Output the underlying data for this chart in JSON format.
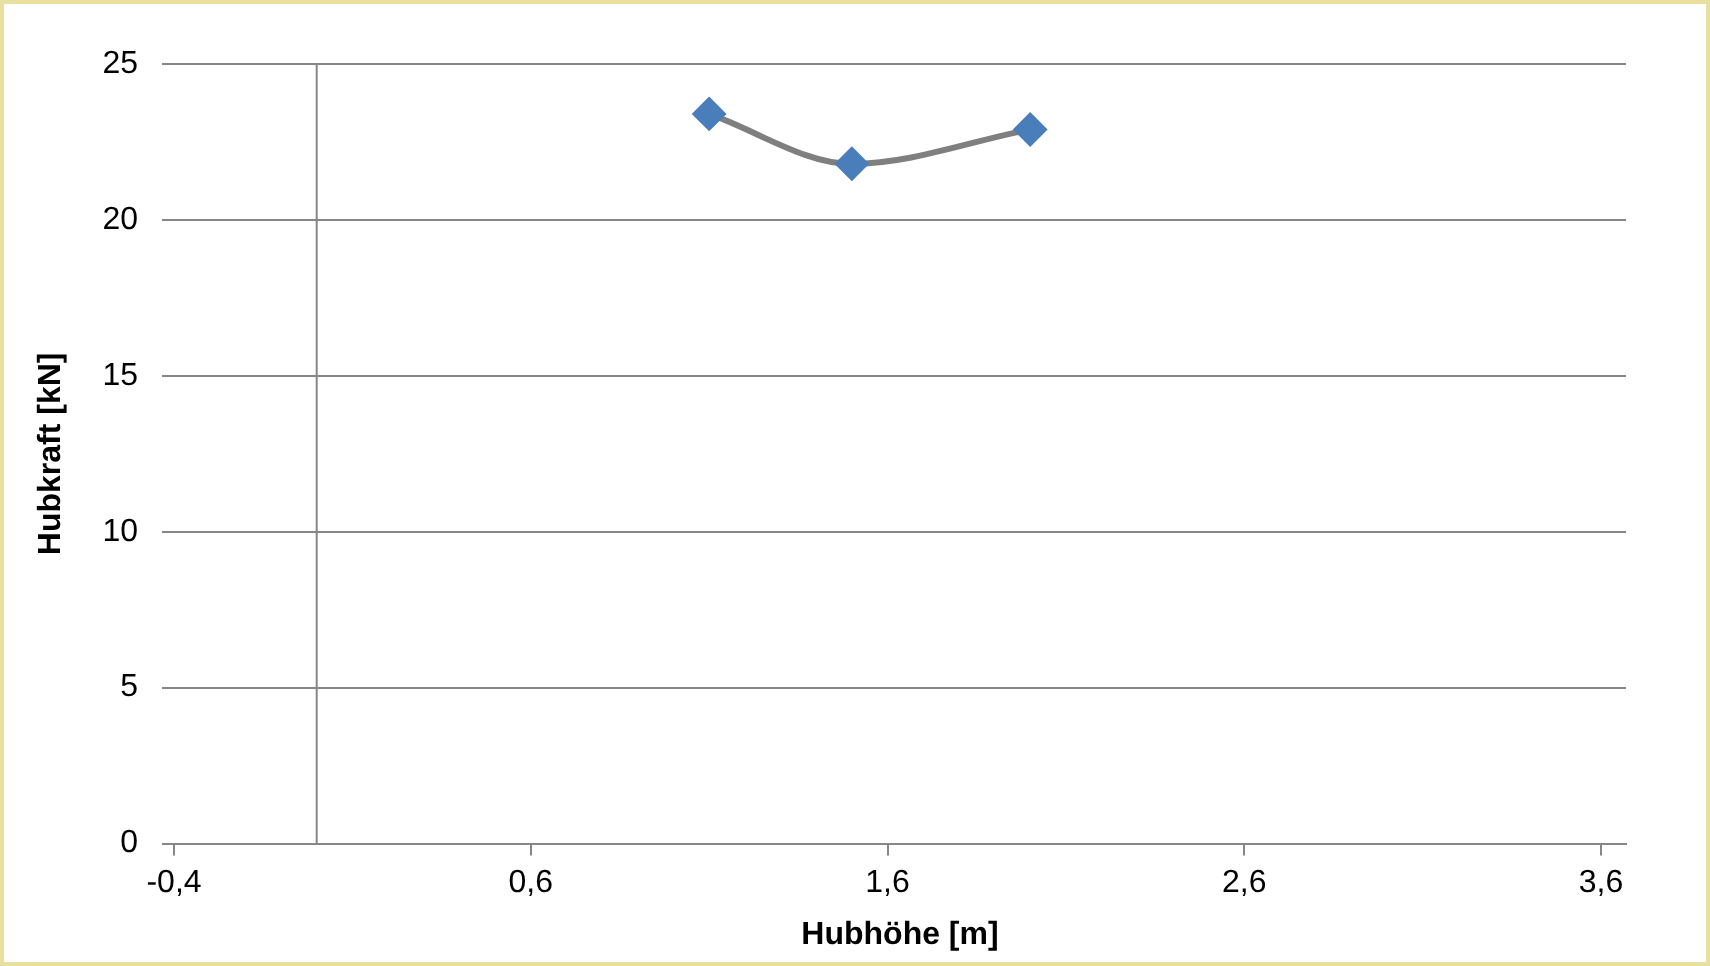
{
  "chart_data": {
    "type": "line",
    "xlabel": "Hubhöhe [m]",
    "ylabel": "Hubkraft [kN]",
    "series": [
      {
        "type": "line",
        "color": "#7f7f7f",
        "x": [
          1.1,
          1.5,
          2.0
        ],
        "values": [
          23.4,
          21.8,
          22.9
        ],
        "marker": "none"
      },
      {
        "type": "scatter",
        "color": "#4a7ebb",
        "x": [
          1.1,
          1.5,
          2.0
        ],
        "values": [
          23.4,
          21.8,
          22.9
        ],
        "marker": "diamond"
      }
    ],
    "xlim": [
      -0.4,
      3.67
    ],
    "xticks": [
      {
        "value": -0.4,
        "label": "-0,4"
      },
      {
        "value": 0.6,
        "label": "0,6"
      },
      {
        "value": 1.6,
        "label": "1,6"
      },
      {
        "value": 2.6,
        "label": "2,6"
      },
      {
        "value": 3.6,
        "label": "3,6"
      }
    ],
    "ylim": [
      0,
      25
    ],
    "yticks": [
      0,
      5,
      10,
      15,
      20,
      25
    ],
    "grid": "y",
    "legend": false,
    "ref_lines": [
      {
        "axis": "x",
        "value": 0,
        "color": "#868686"
      }
    ]
  }
}
